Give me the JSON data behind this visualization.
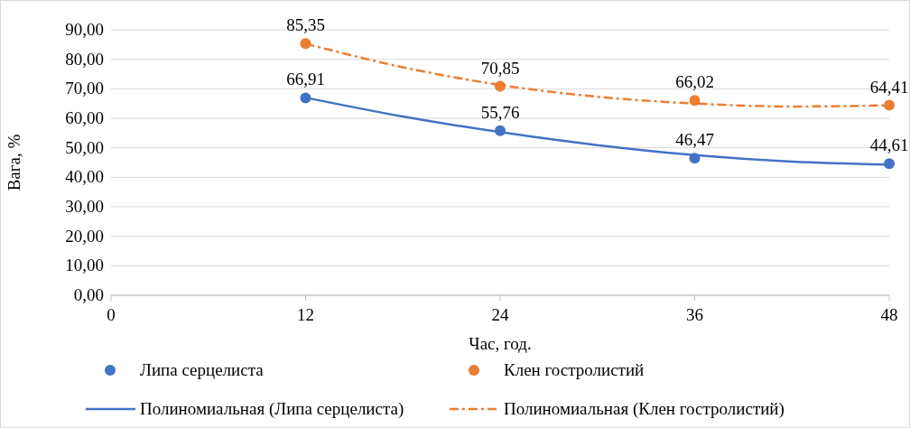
{
  "chart_data": {
    "type": "scatter",
    "xlabel": "Час, год.",
    "ylabel": "Вага, %",
    "xlim": [
      0,
      48
    ],
    "xticks": [
      0,
      12,
      24,
      36,
      48
    ],
    "ylim": [
      0,
      90
    ],
    "yticks": [
      {
        "value": 0,
        "label": "0,00"
      },
      {
        "value": 10,
        "label": "10,00"
      },
      {
        "value": 20,
        "label": "20,00"
      },
      {
        "value": 30,
        "label": "30,00"
      },
      {
        "value": 40,
        "label": "40,00"
      },
      {
        "value": 50,
        "label": "50,00"
      },
      {
        "value": 60,
        "label": "60,00"
      },
      {
        "value": 70,
        "label": "70,00"
      },
      {
        "value": 80,
        "label": "80,00"
      },
      {
        "value": 90,
        "label": "90,00"
      }
    ],
    "grid": "y",
    "legend": "bottom",
    "series": [
      {
        "name": "Липа серцелиста",
        "marker": "circle",
        "color": "#4472c4",
        "x": [
          12,
          24,
          36,
          48
        ],
        "values": [
          66.91,
          55.76,
          46.47,
          44.61
        ],
        "value_labels": [
          "66,91",
          "55,76",
          "46,47",
          "44,61"
        ]
      },
      {
        "name": "Клен гостролистий",
        "marker": "circle",
        "color": "#ed7d31",
        "x": [
          12,
          24,
          36,
          48
        ],
        "values": [
          85.35,
          70.85,
          66.02,
          64.41
        ],
        "value_labels": [
          "85,35",
          "70,85",
          "66,02",
          "64,41"
        ]
      },
      {
        "name": "Полиномиальная (Липа серцелиста)",
        "type": "line",
        "line_style": "solid",
        "color": "#4472c4",
        "x": [
          12,
          18,
          24,
          30,
          36,
          42,
          48
        ],
        "values": [
          67.0,
          60.6,
          55.3,
          50.9,
          47.5,
          45.3,
          44.3
        ]
      },
      {
        "name": "Полиномиальная (Клен гостролистий)",
        "type": "line",
        "line_style": "dashed",
        "color": "#ed7d31",
        "x": [
          12,
          18,
          24,
          30,
          36,
          42,
          48
        ],
        "values": [
          85.3,
          77.3,
          71.3,
          67.3,
          65.0,
          64.0,
          64.4
        ]
      }
    ]
  }
}
